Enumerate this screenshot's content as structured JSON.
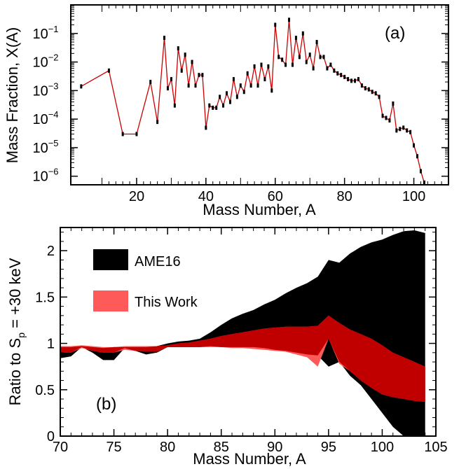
{
  "chart_data": [
    {
      "panel_label": "(a)",
      "type": "line",
      "xlabel": "Mass Number, A",
      "ylabel": "Mass Fraction, X(A)",
      "xlim": [
        1,
        110
      ],
      "ylim": [
        5e-07,
        1
      ],
      "yscale": "log",
      "x_ticks": [
        20,
        40,
        60,
        80,
        100
      ],
      "y_ticks": [
        1e-06,
        1e-05,
        0.0001,
        0.001,
        0.01,
        0.1
      ],
      "y_tick_labels": [
        {
          "base": "10",
          "exp": "−6"
        },
        {
          "base": "10",
          "exp": "−5"
        },
        {
          "base": "10",
          "exp": "−4"
        },
        {
          "base": "10",
          "exp": "−3"
        },
        {
          "base": "10",
          "exp": "−2"
        },
        {
          "base": "10",
          "exp": "−1"
        }
      ],
      "series": [
        {
          "color": "#cc0000",
          "points": [
            [
              4,
              0.0014
            ],
            [
              12,
              0.005
            ],
            [
              16,
              3e-05
            ],
            [
              20,
              3e-05
            ],
            [
              24,
              0.002
            ],
            [
              26,
              8e-05
            ],
            [
              28,
              0.07
            ],
            [
              29,
              0.0012
            ],
            [
              30,
              0.0025
            ],
            [
              31,
              0.0003
            ],
            [
              32,
              0.03
            ],
            [
              33,
              0.005
            ],
            [
              34,
              0.018
            ],
            [
              35,
              0.0015
            ],
            [
              36,
              0.01
            ],
            [
              37,
              0.0015
            ],
            [
              38,
              0.0035
            ],
            [
              39,
              0.0035
            ],
            [
              40,
              5e-05
            ],
            [
              41,
              0.0003
            ],
            [
              42,
              0.00025
            ],
            [
              43,
              0.00025
            ],
            [
              44,
              0.0006
            ],
            [
              45,
              0.0003
            ],
            [
              46,
              0.0008
            ],
            [
              47,
              0.0004
            ],
            [
              48,
              0.0025
            ],
            [
              49,
              0.0006
            ],
            [
              50,
              0.0015
            ],
            [
              51,
              0.0009
            ],
            [
              52,
              0.004
            ],
            [
              53,
              0.0015
            ],
            [
              54,
              0.007
            ],
            [
              55,
              0.0015
            ],
            [
              56,
              0.008
            ],
            [
              57,
              0.0025
            ],
            [
              58,
              0.007
            ],
            [
              59,
              0.001
            ],
            [
              60,
              0.2
            ],
            [
              61,
              0.015
            ],
            [
              62,
              0.012
            ],
            [
              63,
              0.008
            ],
            [
              64,
              0.3
            ],
            [
              65,
              0.008
            ],
            [
              66,
              0.07
            ],
            [
              67,
              0.015
            ],
            [
              68,
              0.1
            ],
            [
              69,
              0.01
            ],
            [
              70,
              0.018
            ],
            [
              71,
              0.006
            ],
            [
              72,
              0.05
            ],
            [
              73,
              0.015
            ],
            [
              74,
              0.015
            ],
            [
              75,
              0.006
            ],
            [
              76,
              0.008
            ],
            [
              77,
              0.005
            ],
            [
              78,
              0.004
            ],
            [
              79,
              0.0035
            ],
            [
              80,
              0.003
            ],
            [
              81,
              0.0025
            ],
            [
              82,
              0.0022
            ],
            [
              83,
              0.0022
            ],
            [
              84,
              0.0025
            ],
            [
              85,
              0.0015
            ],
            [
              86,
              0.0012
            ],
            [
              87,
              0.0011
            ],
            [
              88,
              0.0009
            ],
            [
              89,
              0.0008
            ],
            [
              90,
              0.0006
            ],
            [
              91,
              0.00013
            ],
            [
              92,
              0.00011
            ],
            [
              93,
              9e-05
            ],
            [
              94,
              0.00035
            ],
            [
              95,
              4e-05
            ],
            [
              96,
              4.5e-05
            ],
            [
              97,
              5e-05
            ],
            [
              98,
              4e-05
            ],
            [
              99,
              3.5e-05
            ],
            [
              100,
              1.2e-05
            ],
            [
              101,
              5e-06
            ],
            [
              102,
              1.5e-06
            ],
            [
              103,
              6e-07
            ]
          ]
        }
      ]
    },
    {
      "panel_label": "(b)",
      "type": "area",
      "xlabel": "Mass Number, A",
      "ylabel": {
        "main": "Ratio to S",
        "sub": "p",
        "tail": " = +30 keV"
      },
      "xlim": [
        70,
        105
      ],
      "ylim": [
        0,
        2.25
      ],
      "x_ticks": [
        70,
        75,
        80,
        85,
        90,
        95,
        100,
        105
      ],
      "y_ticks": [
        0,
        0.5,
        1,
        1.5,
        2
      ],
      "y_tick_labels": [
        "0",
        "0.5",
        "1",
        "1.5",
        "2"
      ],
      "legend_position": "top-left",
      "series": [
        {
          "name": "AME16",
          "color": "#000000",
          "x": [
            70,
            71,
            72,
            73,
            74,
            75,
            76,
            77,
            78,
            79,
            80,
            81,
            82,
            83,
            84,
            85,
            86,
            87,
            88,
            89,
            90,
            91,
            92,
            93,
            94,
            95,
            96,
            97,
            98,
            99,
            100,
            101,
            102,
            103,
            104
          ],
          "upper": [
            0.96,
            0.96,
            0.97,
            0.96,
            0.95,
            0.96,
            0.96,
            0.96,
            0.96,
            0.97,
            1.0,
            1.02,
            1.03,
            1.05,
            1.12,
            1.2,
            1.27,
            1.32,
            1.36,
            1.42,
            1.47,
            1.54,
            1.6,
            1.65,
            1.72,
            1.9,
            1.87,
            1.97,
            2.04,
            2.09,
            2.12,
            2.17,
            2.21,
            2.22,
            2.19
          ],
          "lower": [
            0.84,
            0.86,
            0.96,
            0.9,
            0.82,
            0.82,
            0.95,
            0.92,
            0.88,
            0.9,
            0.96,
            0.96,
            0.96,
            0.96,
            0.97,
            0.96,
            0.96,
            0.96,
            0.96,
            0.95,
            0.93,
            0.92,
            0.9,
            0.88,
            0.87,
            0.75,
            0.8,
            0.65,
            0.55,
            0.4,
            0.25,
            0.1,
            0.0,
            0.0,
            0.0
          ]
        },
        {
          "name": "This Work",
          "color": "#ff5a5a",
          "x": [
            70,
            71,
            72,
            73,
            74,
            75,
            76,
            77,
            78,
            79,
            80,
            81,
            82,
            83,
            84,
            85,
            86,
            87,
            88,
            89,
            90,
            91,
            92,
            93,
            94,
            95,
            96,
            97,
            98,
            99,
            100,
            101,
            102,
            103,
            104
          ],
          "upper": [
            0.97,
            0.97,
            0.98,
            0.97,
            0.96,
            0.96,
            0.97,
            0.97,
            0.97,
            0.97,
            0.98,
            1.0,
            1.01,
            1.03,
            1.05,
            1.08,
            1.1,
            1.12,
            1.14,
            1.16,
            1.17,
            1.18,
            1.18,
            1.18,
            1.19,
            1.3,
            1.22,
            1.15,
            1.1,
            1.05,
            0.98,
            0.9,
            0.85,
            0.8,
            0.75
          ],
          "lower": [
            0.9,
            0.9,
            0.95,
            0.92,
            0.9,
            0.9,
            0.93,
            0.92,
            0.91,
            0.91,
            0.96,
            0.96,
            0.96,
            0.96,
            0.96,
            0.96,
            0.95,
            0.95,
            0.94,
            0.93,
            0.92,
            0.91,
            0.88,
            0.85,
            0.75,
            1.05,
            0.78,
            0.7,
            0.6,
            0.52,
            0.45,
            0.42,
            0.4,
            0.38,
            0.37
          ]
        },
        {
          "color": "#c00000",
          "overlap": true,
          "x": [
            70,
            71,
            72,
            73,
            74,
            75,
            76,
            77,
            78,
            79,
            80,
            81,
            82,
            83,
            84,
            85,
            86,
            87,
            88,
            89,
            90,
            91,
            92,
            93,
            94,
            95,
            96,
            97,
            98,
            99,
            100,
            101,
            102,
            103,
            104
          ],
          "upper": [
            0.96,
            0.96,
            0.97,
            0.96,
            0.95,
            0.96,
            0.96,
            0.96,
            0.96,
            0.97,
            0.98,
            1.0,
            1.01,
            1.03,
            1.05,
            1.08,
            1.1,
            1.12,
            1.14,
            1.16,
            1.17,
            1.18,
            1.18,
            1.18,
            1.19,
            1.3,
            1.22,
            1.15,
            1.1,
            1.05,
            0.98,
            0.9,
            0.85,
            0.8,
            0.75
          ],
          "lower": [
            0.9,
            0.9,
            0.96,
            0.92,
            0.9,
            0.9,
            0.95,
            0.92,
            0.91,
            0.91,
            0.96,
            0.96,
            0.96,
            0.96,
            0.97,
            0.96,
            0.96,
            0.96,
            0.96,
            0.95,
            0.93,
            0.92,
            0.9,
            0.88,
            0.87,
            1.05,
            0.8,
            0.7,
            0.6,
            0.52,
            0.45,
            0.42,
            0.4,
            0.38,
            0.37
          ]
        }
      ]
    }
  ]
}
